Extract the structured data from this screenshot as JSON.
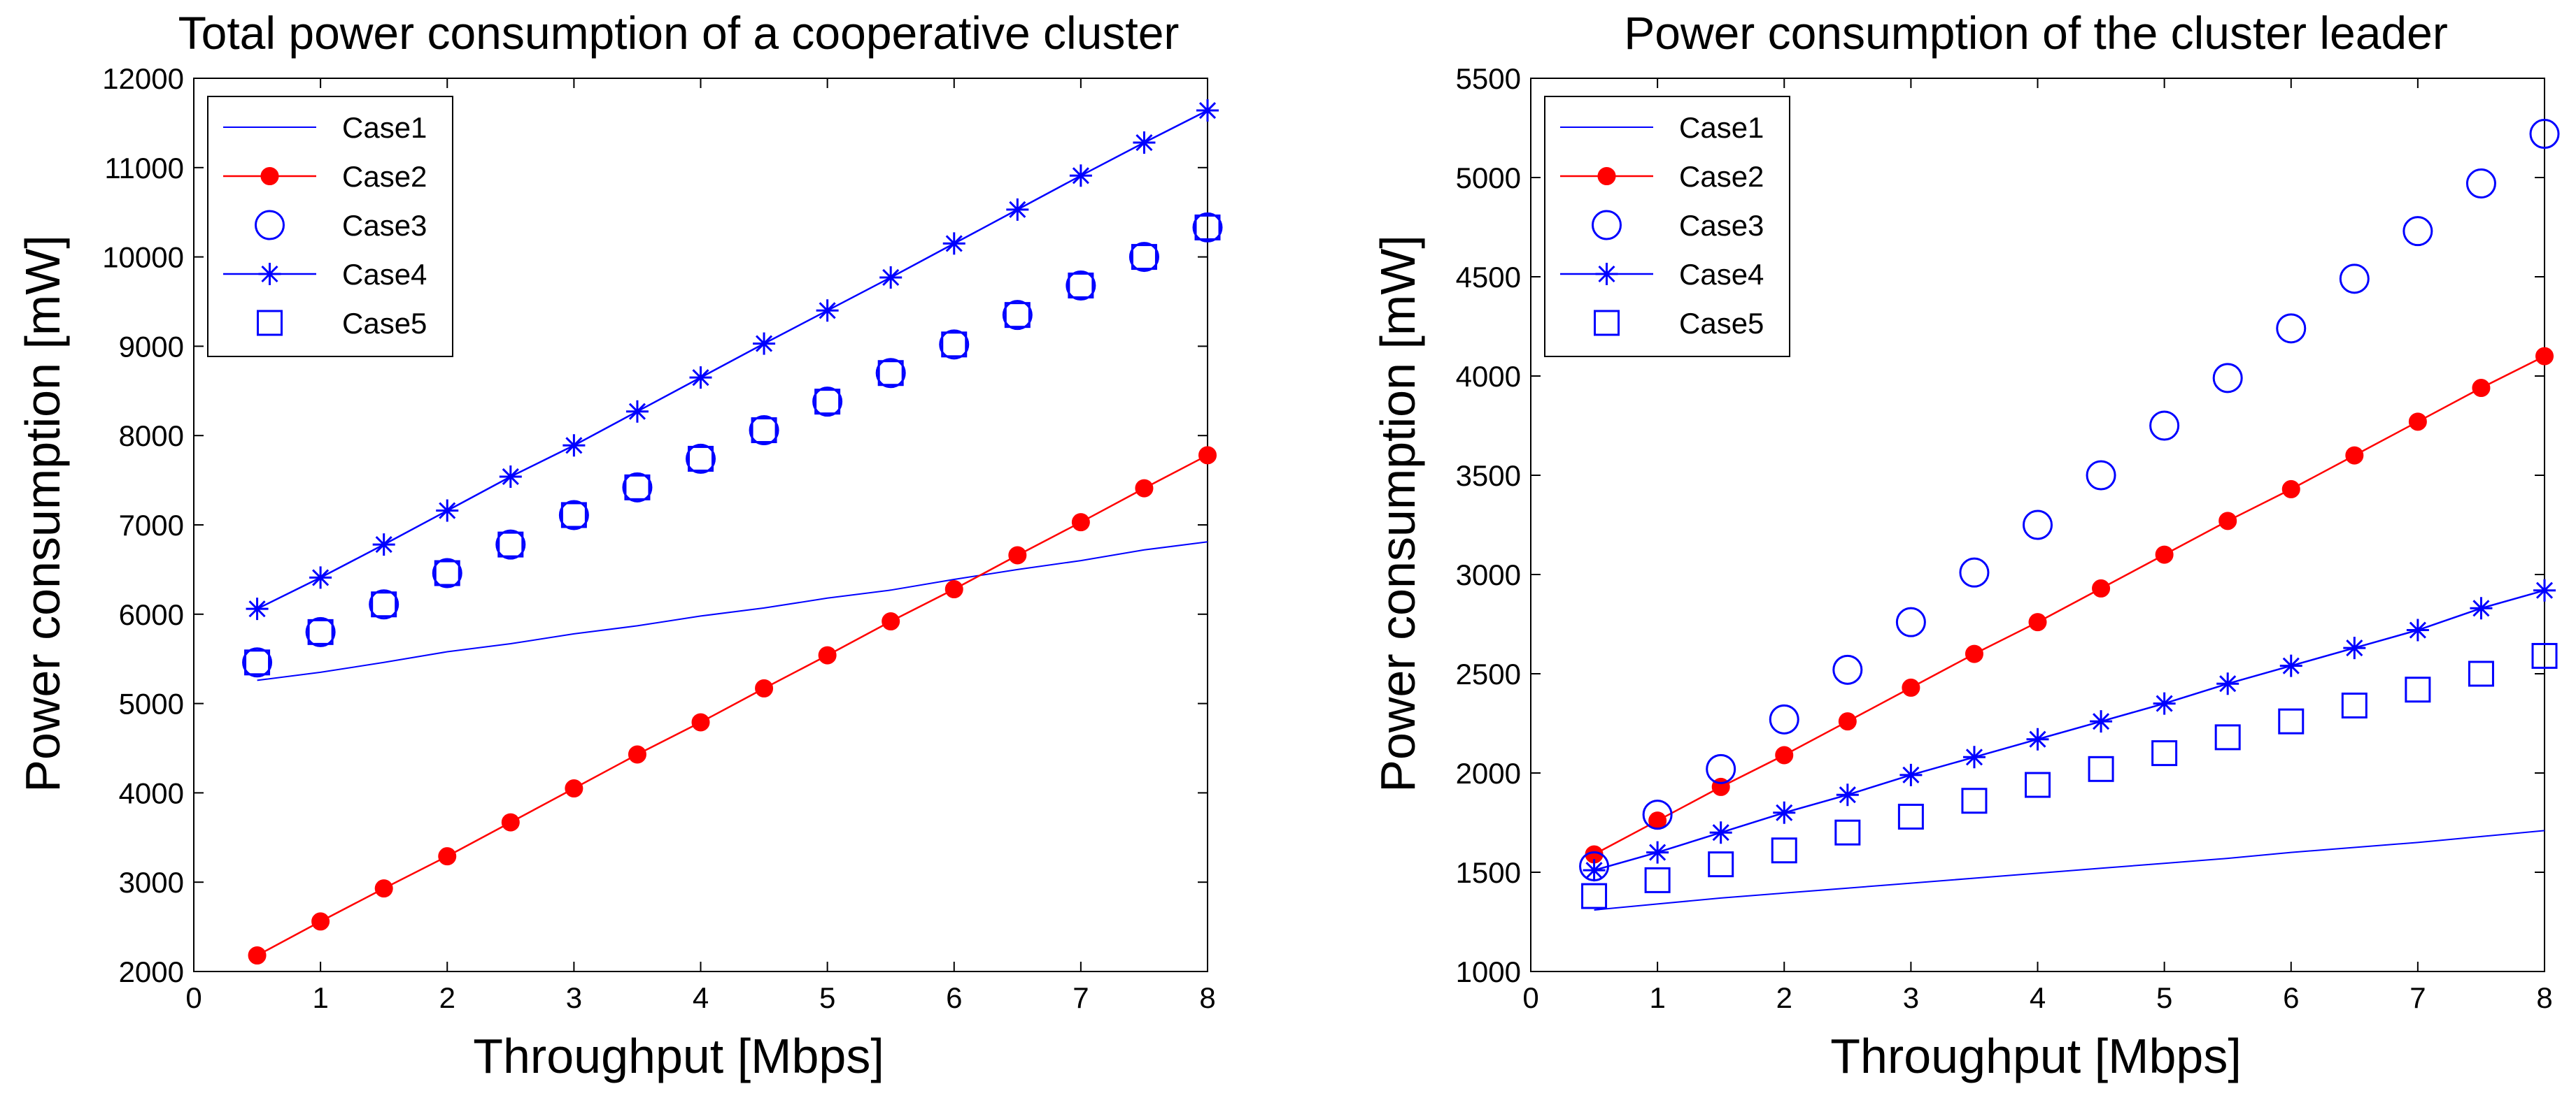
{
  "chart_data": [
    {
      "type": "line",
      "title": "Total power consumption of a cooperative cluster",
      "xlabel": "Throughput [Mbps]",
      "ylabel": "Power consumption [mW]",
      "xlim": [
        0,
        8
      ],
      "ylim": [
        2000,
        12000
      ],
      "xticks": [
        0,
        1,
        2,
        3,
        4,
        5,
        6,
        7,
        8
      ],
      "yticks": [
        2000,
        3000,
        4000,
        5000,
        6000,
        7000,
        8000,
        9000,
        10000,
        11000,
        12000
      ],
      "grid": false,
      "legend_position": "top-left",
      "x": [
        0.5,
        1,
        1.5,
        2,
        2.5,
        3,
        3.5,
        4,
        4.5,
        5,
        5.5,
        6,
        6.5,
        7,
        7.5,
        8
      ],
      "series": [
        {
          "name": "Case1",
          "color": "#0000ff",
          "marker": "none",
          "line": true,
          "values": [
            5260,
            5350,
            5460,
            5580,
            5670,
            5780,
            5870,
            5980,
            6070,
            6180,
            6270,
            6390,
            6500,
            6600,
            6720,
            6810
          ]
        },
        {
          "name": "Case2",
          "color": "#ff0000",
          "marker": "dot",
          "line": true,
          "values": [
            2180,
            2560,
            2930,
            3290,
            3670,
            4050,
            4430,
            4790,
            5170,
            5540,
            5920,
            6280,
            6660,
            7030,
            7410,
            7780
          ]
        },
        {
          "name": "Case3",
          "color": "#0000ff",
          "marker": "circle",
          "line": false,
          "values": [
            5460,
            5800,
            6110,
            6460,
            6780,
            7110,
            7420,
            7740,
            8060,
            8380,
            8700,
            9020,
            9350,
            9680,
            10000,
            10330
          ]
        },
        {
          "name": "Case4",
          "color": "#0000ff",
          "marker": "star",
          "line": true,
          "values": [
            6060,
            6410,
            6780,
            7160,
            7540,
            7890,
            8270,
            8650,
            9030,
            9400,
            9770,
            10150,
            10530,
            10910,
            11280,
            11640
          ]
        },
        {
          "name": "Case5",
          "color": "#0000ff",
          "marker": "square",
          "line": false,
          "values": [
            5460,
            5800,
            6110,
            6460,
            6780,
            7110,
            7420,
            7740,
            8060,
            8380,
            8700,
            9020,
            9350,
            9680,
            10000,
            10330
          ]
        }
      ]
    },
    {
      "type": "line",
      "title": "Power consumption of the cluster leader",
      "xlabel": "Throughput [Mbps]",
      "ylabel": "Power consumption [mW]",
      "xlim": [
        0,
        8
      ],
      "ylim": [
        1000,
        5500
      ],
      "xticks": [
        0,
        1,
        2,
        3,
        4,
        5,
        6,
        7,
        8
      ],
      "yticks": [
        1000,
        1500,
        2000,
        2500,
        3000,
        3500,
        4000,
        4500,
        5000,
        5500
      ],
      "grid": false,
      "legend_position": "top-left",
      "x": [
        0.5,
        1,
        1.5,
        2,
        2.5,
        3,
        3.5,
        4,
        4.5,
        5,
        5.5,
        6,
        6.5,
        7,
        7.5,
        8
      ],
      "series": [
        {
          "name": "Case1",
          "color": "#0000ff",
          "marker": "none",
          "line": true,
          "values": [
            1310,
            1340,
            1370,
            1395,
            1420,
            1445,
            1470,
            1495,
            1520,
            1545,
            1570,
            1600,
            1625,
            1650,
            1680,
            1710
          ]
        },
        {
          "name": "Case2",
          "color": "#ff0000",
          "marker": "dot",
          "line": true,
          "values": [
            1590,
            1760,
            1930,
            2090,
            2260,
            2430,
            2600,
            2760,
            2930,
            3100,
            3270,
            3430,
            3600,
            3770,
            3940,
            4100
          ]
        },
        {
          "name": "Case3",
          "color": "#0000ff",
          "marker": "circle",
          "line": false,
          "values": [
            1530,
            1790,
            2020,
            2270,
            2520,
            2760,
            3010,
            3250,
            3500,
            3750,
            3990,
            4240,
            4490,
            4730,
            4970,
            5220
          ]
        },
        {
          "name": "Case4",
          "color": "#0000ff",
          "marker": "star",
          "line": true,
          "values": [
            1510,
            1600,
            1700,
            1800,
            1890,
            1990,
            2080,
            2170,
            2260,
            2350,
            2450,
            2540,
            2630,
            2720,
            2830,
            2920
          ]
        },
        {
          "name": "Case5",
          "color": "#0000ff",
          "marker": "square",
          "line": false,
          "values": [
            1380,
            1460,
            1540,
            1610,
            1700,
            1780,
            1860,
            1940,
            2020,
            2100,
            2180,
            2260,
            2340,
            2420,
            2500,
            2590
          ]
        }
      ]
    }
  ]
}
